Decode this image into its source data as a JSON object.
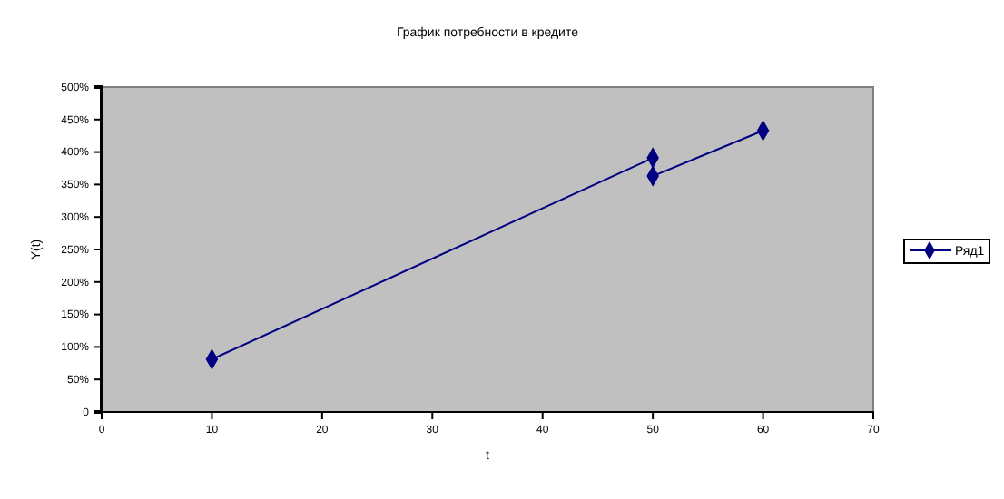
{
  "chart_data": {
    "type": "line",
    "title": "График потребности в кредите",
    "xlabel": "t",
    "ylabel": "Y(t)",
    "x": [
      10,
      50,
      50,
      60
    ],
    "series": [
      {
        "name": "Ряд1",
        "color": "#000080",
        "values": [
          81,
          391,
          363,
          433
        ]
      }
    ],
    "xlim": [
      0,
      70
    ],
    "xticks": [
      0,
      10,
      20,
      30,
      40,
      50,
      60,
      70
    ],
    "ylim": [
      0,
      500
    ],
    "yticks": [
      {
        "value": 0,
        "label": "0"
      },
      {
        "value": 50,
        "label": "50%"
      },
      {
        "value": 100,
        "label": "100%"
      },
      {
        "value": 150,
        "label": "150%"
      },
      {
        "value": 200,
        "label": "200%"
      },
      {
        "value": 250,
        "label": "250%"
      },
      {
        "value": 300,
        "label": "300%"
      },
      {
        "value": 350,
        "label": "350%"
      },
      {
        "value": 400,
        "label": "400%"
      },
      {
        "value": 450,
        "label": "450%"
      },
      {
        "value": 500,
        "label": "500%"
      }
    ],
    "grid": false,
    "legend": "right",
    "marker": "diamond",
    "line_style": "solid"
  }
}
